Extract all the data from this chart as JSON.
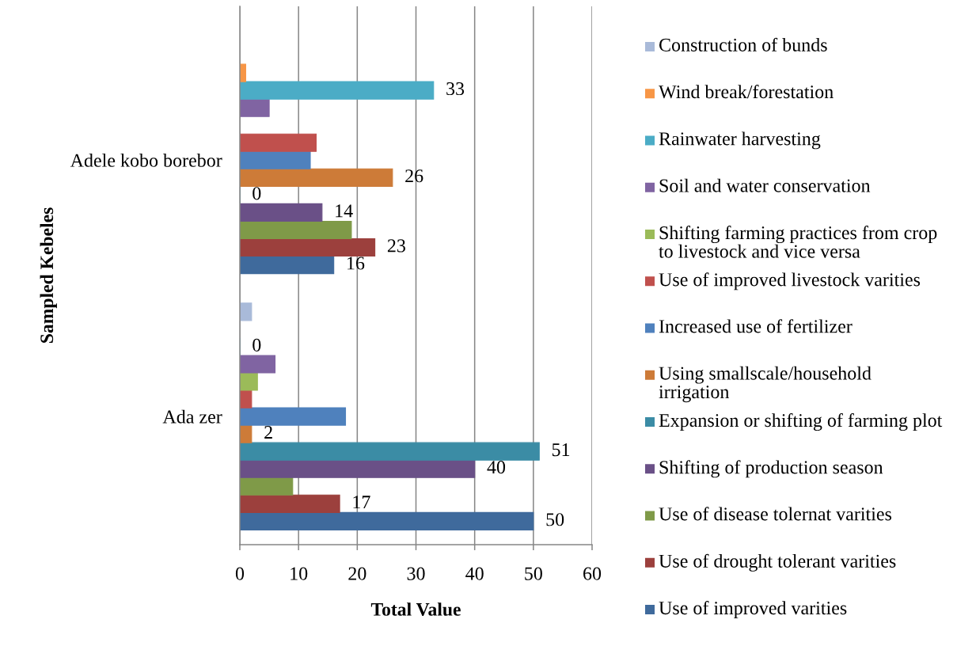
{
  "chart_data": {
    "type": "bar",
    "orientation": "horizontal",
    "xlabel": "Total Value",
    "ylabel": "Sampled Kebeles",
    "categories": [
      "Adele kobo borebor",
      "Ada zer"
    ],
    "xlim": [
      0,
      60
    ],
    "xticks": [
      0,
      10,
      20,
      30,
      40,
      50,
      60
    ],
    "grid": "x",
    "legend": "right",
    "series": [
      {
        "name": "Use of improved varities",
        "color": "#3f6a9c",
        "values": [
          16,
          50
        ],
        "value_labels": [
          "16",
          "50"
        ]
      },
      {
        "name": "Use of drought tolerant varities",
        "color": "#9c403d",
        "values": [
          23,
          17
        ],
        "value_labels": [
          "23",
          "17"
        ]
      },
      {
        "name": "Use of disease tolernat varities",
        "color": "#7f9a48",
        "values": [
          19,
          9
        ]
      },
      {
        "name": "Shifting of production season",
        "color": "#6a5087",
        "values": [
          14,
          40
        ],
        "value_labels": [
          "14",
          "40"
        ]
      },
      {
        "name": "Expansion or shifting of farming plot",
        "color": "#3b8ca5",
        "values": [
          0,
          51
        ],
        "value_labels": [
          "0",
          "51"
        ]
      },
      {
        "name": "Using smallscale/household irrigation",
        "color": "#cd7b38",
        "values": [
          26,
          2
        ],
        "value_labels": [
          "26",
          "2"
        ]
      },
      {
        "name": "Increased use of fertilizer",
        "color": "#4f81bd",
        "values": [
          12,
          18
        ]
      },
      {
        "name": "Use of improved livestock varities",
        "color": "#c0504d",
        "values": [
          13,
          2
        ]
      },
      {
        "name": "Shifting farming practices from crop to livestock and vice versa",
        "color": "#9bbb59",
        "values": [
          null,
          3
        ]
      },
      {
        "name": "Soil and water conservation",
        "color": "#8064a2",
        "values": [
          5,
          6
        ]
      },
      {
        "name": "Rainwater harvesting",
        "color": "#4bacc6",
        "values": [
          33,
          0
        ],
        "value_labels": [
          "33",
          "0"
        ]
      },
      {
        "name": "Wind break/forestation",
        "color": "#f79646",
        "values": [
          1,
          null
        ]
      },
      {
        "name": "Construction of bunds",
        "color": "#a9bad9",
        "values": [
          null,
          2
        ]
      }
    ]
  }
}
